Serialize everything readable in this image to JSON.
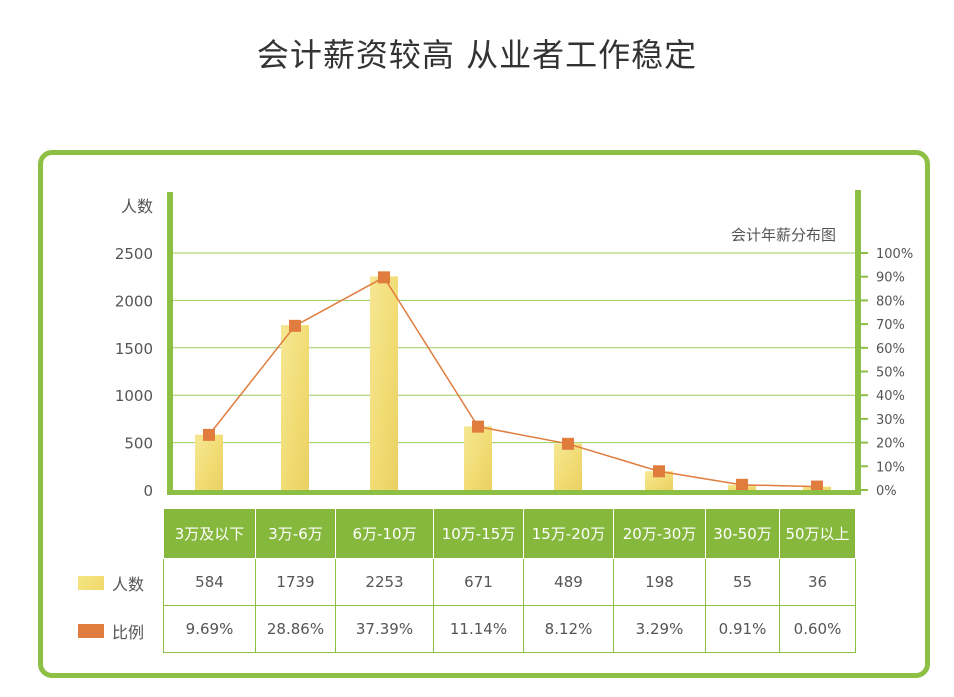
{
  "page_title": "会计薪资较高 从业者工作稳定",
  "chart_data": {
    "type": "bar",
    "title": "会计年薪分布图",
    "ylabel": "人数",
    "ylim": [
      0,
      2500
    ],
    "y_ticks": [
      "0",
      "500",
      "1000",
      "1500",
      "2000",
      "2500"
    ],
    "y2lim": [
      0,
      100
    ],
    "y2_ticks": [
      "0%",
      "10%",
      "20%",
      "30%",
      "40%",
      "50%",
      "60%",
      "70%",
      "80%",
      "90%",
      "100%"
    ],
    "categories": [
      "3万及以下",
      "3万-6万",
      "6万-10万",
      "10万-15万",
      "15万-20万",
      "20万-30万",
      "30-50万",
      "50万以上"
    ],
    "series": [
      {
        "name": "人数",
        "type": "bar",
        "color": "#f2df78",
        "values": [
          584,
          1739,
          2253,
          671,
          489,
          198,
          55,
          36
        ],
        "display": [
          "584",
          "1739",
          "2253",
          "671",
          "489",
          "198",
          "55",
          "36"
        ]
      },
      {
        "name": "比例",
        "type": "line",
        "color": "#e07c3e",
        "axis": "right",
        "values": [
          9.69,
          28.86,
          37.39,
          11.14,
          8.12,
          3.29,
          0.91,
          0.6
        ],
        "display": [
          "9.69%",
          "28.86%",
          "37.39%",
          "11.14%",
          "8.12%",
          "3.29%",
          "0.91%",
          "0.60%"
        ]
      }
    ],
    "grid": true,
    "legend": "left-table"
  }
}
